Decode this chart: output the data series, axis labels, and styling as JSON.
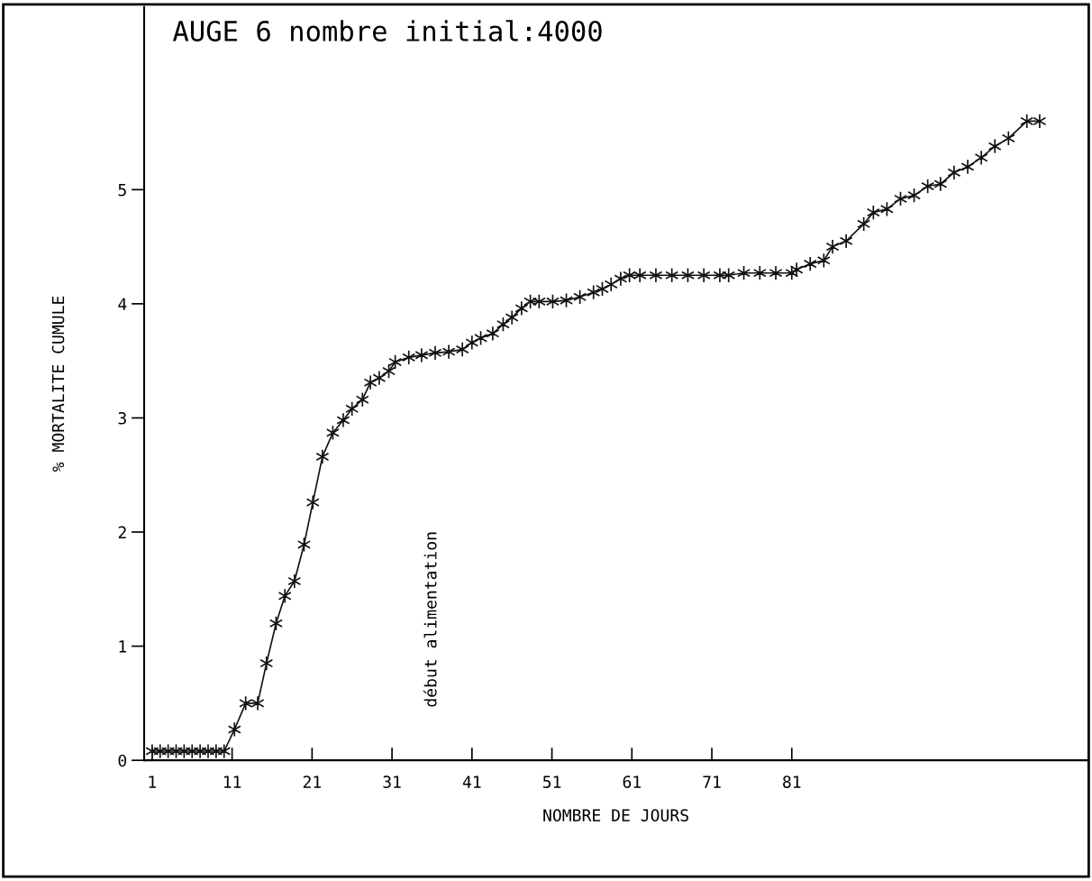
{
  "chart_data": {
    "type": "line",
    "title": "AUGE 6 nombre initial:4000",
    "xlabel": "NOMBRE DE JOURS",
    "ylabel": "% MORTALITE CUMULE",
    "x": [
      1,
      2,
      3,
      4,
      5,
      6,
      7,
      8,
      9,
      10,
      11.3,
      12.7,
      14.2,
      15.3,
      16.5,
      17.6,
      18.8,
      20,
      21.1,
      22.3,
      23.6,
      24.9,
      26,
      27.3,
      28.3,
      29.4,
      30.6,
      31.4,
      33.1,
      34.7,
      36.4,
      38.1,
      39.8,
      41,
      42.1,
      43.6,
      44.9,
      46,
      47.2,
      48.3,
      49.4,
      51.1,
      52.8,
      54.5,
      56.2,
      57.3,
      58.4,
      59.6,
      60.7,
      62,
      64,
      66,
      68,
      70,
      72,
      73.1,
      75,
      77,
      79,
      81,
      81.6,
      83.3,
      85,
      86.1,
      87.8,
      90,
      91.2,
      92.9,
      94.6,
      96.3,
      98,
      99.6,
      101.3,
      103,
      104.7,
      106.4,
      108.1,
      110.4,
      112
    ],
    "series": [
      {
        "color": "#111111",
        "values": [
          0.08,
          0.08,
          0.08,
          0.08,
          0.08,
          0.08,
          0.08,
          0.08,
          0.08,
          0.08,
          0.27,
          0.5,
          0.5,
          0.85,
          1.2,
          1.44,
          1.57,
          1.89,
          2.26,
          2.66,
          2.87,
          2.98,
          3.08,
          3.16,
          3.31,
          3.35,
          3.41,
          3.49,
          3.53,
          3.55,
          3.57,
          3.58,
          3.6,
          3.66,
          3.7,
          3.74,
          3.82,
          3.88,
          3.96,
          4.02,
          4.02,
          4.02,
          4.03,
          4.06,
          4.1,
          4.13,
          4.17,
          4.22,
          4.25,
          4.25,
          4.25,
          4.25,
          4.25,
          4.25,
          4.25,
          4.25,
          4.27,
          4.27,
          4.27,
          4.27,
          4.3,
          4.35,
          4.38,
          4.5,
          4.55,
          4.7,
          4.8,
          4.83,
          4.92,
          4.95,
          5.03,
          5.05,
          5.15,
          5.2,
          5.28,
          5.38,
          5.45,
          5.6,
          5.6
        ]
      }
    ],
    "xlim": [
      0,
      118
    ],
    "xticks": [
      1,
      11,
      21,
      31,
      41,
      51,
      61,
      71,
      81
    ],
    "ylim": [
      0,
      6.6
    ],
    "yticks": [
      0,
      1,
      2,
      3,
      4,
      5
    ],
    "annotations": [
      "début alimentation"
    ],
    "marker": "cross",
    "line_style": "solid",
    "grid": false
  }
}
